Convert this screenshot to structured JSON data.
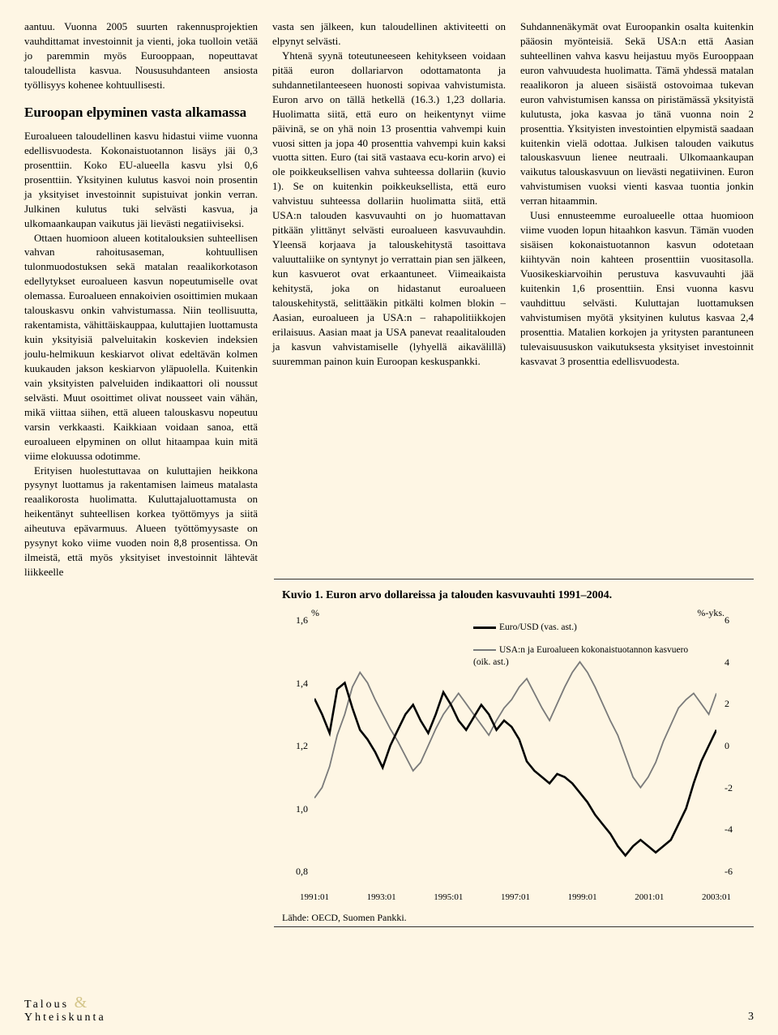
{
  "col1": {
    "p1": "aantuu. Vuonna 2005 suurten rakennusprojektien vauhdittamat investoinnit ja vienti, joka tuolloin vetää jo paremmin myös Eurooppaan, nopeuttavat taloudellista kasvua. Noususuhdanteen ansiosta työllisyys kohenee kohtuullisesti.",
    "heading": "Euroopan elpyminen vasta alkamassa",
    "p2": "Euroalueen taloudellinen kasvu hidastui viime vuonna edellisvuodesta. Kokonaistuotannon lisäys jäi 0,3 prosenttiin. Koko EU-alueella kasvu ylsi 0,6 prosenttiin. Yksityinen kulutus kasvoi noin prosentin ja yksityiset investoinnit supistuivat jonkin verran. Julkinen kulutus tuki selvästi kasvua, ja ulkomaankaupan vaikutus jäi lievästi negatiiviseksi.",
    "p3": "Ottaen huomioon alueen kotitalouksien suhteellisen vahvan rahoitusaseman, kohtuullisen tulonmuodostuksen sekä matalan reaalikorkotason edellytykset euroalueen kasvun nopeutumiselle ovat olemassa. Euroalueen ennakoivien osoittimien mukaan talouskasvu onkin vahvistumassa. Niin teollisuutta, rakentamista, vähittäiskauppaa, kuluttajien luottamusta kuin yksityisiä palveluitakin koskevien indeksien joulu-helmikuun keskiarvot olivat edeltävän kolmen kuukauden jakson keskiarvon yläpuolella. Kuitenkin vain yksityisten palveluiden indikaattori oli noussut selvästi. Muut osoittimet olivat nousseet vain vähän, mikä viittaa siihen, että alueen talouskasvu nopeutuu varsin verkkaasti. Kaikkiaan voidaan sanoa, että euroalueen elpyminen on ollut hitaampaa kuin mitä viime elokuussa odotimme.",
    "p4": "Erityisen huolestuttavaa on kuluttajien heikkona pysynyt luottamus ja rakentamisen laimeus matalasta reaalikorosta huolimatta. Kuluttajaluottamusta on heikentänyt suhteellisen korkea työttömyys ja siitä aiheutuva epävarmuus. Alueen työttömyysaste on pysynyt koko viime vuoden noin 8,8 prosentissa. On ilmeistä, että myös yksityiset investoinnit lähtevät liikkeelle"
  },
  "col2": {
    "p1": "vasta sen jälkeen, kun taloudellinen aktiviteetti on elpynyt selvästi.",
    "p2": "Yhtenä syynä toteutuneeseen kehitykseen voidaan pitää euron dollariarvon odottamatonta ja suhdannetilanteeseen huonosti sopivaa vahvistumista. Euron arvo on tällä hetkellä (16.3.) 1,23 dollaria. Huolimatta siitä, että euro on heikentynyt viime päivinä, se on yhä noin 13 prosenttia vahvempi kuin vuosi sitten ja jopa 40 prosenttia vahvempi kuin kaksi vuotta sitten. Euro (tai sitä vastaava ecu-korin arvo) ei ole poikkeuksellisen vahva suhteessa dollariin (kuvio 1). Se on kuitenkin poikkeuksellista, että euro vahvistuu suhteessa dollariin huolimatta siitä, että USA:n talouden kasvuvauhti on jo huomattavan pitkään ylittänyt selvästi euroalueen kasvuvauhdin. Yleensä korjaava ja talouskehitystä tasoittava valuuttaliike on syntynyt jo verrattain pian sen jälkeen, kun kasvuerot ovat erkaantuneet. Viimeaikaista kehitystä, joka on hidastanut euroalueen talouskehitystä, selittääkin pitkälti kolmen blokin – Aasian, euroalueen ja USA:n – rahapolitiikkojen erilaisuus. Aasian maat ja USA panevat reaalitalouden ja kasvun vahvistamiselle (lyhyellä aikavälillä) suuremman painon kuin Euroopan keskuspankki."
  },
  "col3": {
    "p1": "Suhdannenäkymät ovat Euroopankin osalta kuitenkin pääosin myönteisiä. Sekä USA:n että Aasian suhteellinen vahva kasvu heijastuu myös Eurooppaan euron vahvuudesta huolimatta. Tämä yhdessä matalan reaalikoron ja alueen sisäistä ostovoimaa tukevan euron vahvistumisen kanssa on piristämässä yksityistä kulutusta, joka kasvaa jo tänä vuonna noin 2 prosenttia. Yksityisten investointien elpymistä saadaan kuitenkin vielä odottaa. Julkisen talouden vaikutus talouskasvuun lienee neutraali. Ulkomaankaupan vaikutus talouskasvuun on lievästi negatiivinen. Euron vahvistumisen vuoksi vienti kasvaa tuontia jonkin verran hitaammin.",
    "p2": "Uusi ennusteemme euroalueelle ottaa huomioon viime vuoden lopun hitaahkon kasvun. Tämän vuoden sisäisen kokonaistuotannon kasvun odotetaan kiihtyvän noin kahteen prosenttiin vuositasolla. Vuosikeskiarvoihin perustuva kasvuvauhti jää kuitenkin 1,6 prosenttiin. Ensi vuonna kasvu vauhdittuu selvästi. Kuluttajan luottamuksen vahvistumisen myötä yksityinen kulutus kasvaa 2,4 prosenttia. Matalien korkojen ja yritysten parantuneen tulevaisuususkon vaikutuksesta yksityiset investoinnit kasvavat 3 prosenttia edellisvuodesta."
  },
  "chart": {
    "title": "Kuvio 1. Euron arvo dollareissa ja talouden kasvuvauhti 1991–2004.",
    "left_unit": "%",
    "right_unit": "%-yks.",
    "legend1": "Euro/USD (vas. ast.)",
    "legend2": "USA:n ja Euroalueen kokonaistuotannon kasvuero (oik. ast.)",
    "y_left": [
      "1,6",
      "1,4",
      "1,2",
      "1,0",
      "0,8"
    ],
    "y_right": [
      "6",
      "4",
      "2",
      "0",
      "-2",
      "-4",
      "-6"
    ],
    "x_labels": [
      "1991:01",
      "1993:01",
      "1995:01",
      "1997:01",
      "1999:01",
      "2001:01",
      "2003:01"
    ],
    "source": "Lähde: OECD, Suomen Pankki.",
    "colors": {
      "euro": "#000000",
      "gap": "#7a7a7a",
      "bg": "#fef6e4"
    },
    "euro_series": [
      1.35,
      1.3,
      1.24,
      1.38,
      1.4,
      1.32,
      1.25,
      1.22,
      1.18,
      1.13,
      1.2,
      1.25,
      1.3,
      1.33,
      1.28,
      1.24,
      1.3,
      1.37,
      1.33,
      1.28,
      1.25,
      1.29,
      1.33,
      1.3,
      1.25,
      1.28,
      1.26,
      1.22,
      1.15,
      1.12,
      1.1,
      1.08,
      1.11,
      1.1,
      1.08,
      1.05,
      1.02,
      0.98,
      0.95,
      0.92,
      0.88,
      0.85,
      0.88,
      0.9,
      0.88,
      0.86,
      0.88,
      0.9,
      0.95,
      1.0,
      1.08,
      1.15,
      1.2,
      1.25
    ],
    "gap_series": [
      -2.5,
      -2.0,
      -1.0,
      0.5,
      1.5,
      2.8,
      3.5,
      3.0,
      2.2,
      1.5,
      0.8,
      0.2,
      -0.5,
      -1.2,
      -0.8,
      0.0,
      0.8,
      1.5,
      2.0,
      2.5,
      2.0,
      1.5,
      1.0,
      0.5,
      1.2,
      1.8,
      2.2,
      2.8,
      3.2,
      2.5,
      1.8,
      1.2,
      2.0,
      2.8,
      3.5,
      4.0,
      3.5,
      2.8,
      2.0,
      1.2,
      0.5,
      -0.5,
      -1.5,
      -2.0,
      -1.5,
      -0.8,
      0.2,
      1.0,
      1.8,
      2.2,
      2.5,
      2.0,
      1.5,
      2.5
    ],
    "left_range": [
      0.8,
      1.6
    ],
    "right_range": [
      -6,
      6
    ]
  },
  "footer": {
    "word1": "Talous",
    "word2": "Yhteiskunta",
    "page": "3"
  }
}
